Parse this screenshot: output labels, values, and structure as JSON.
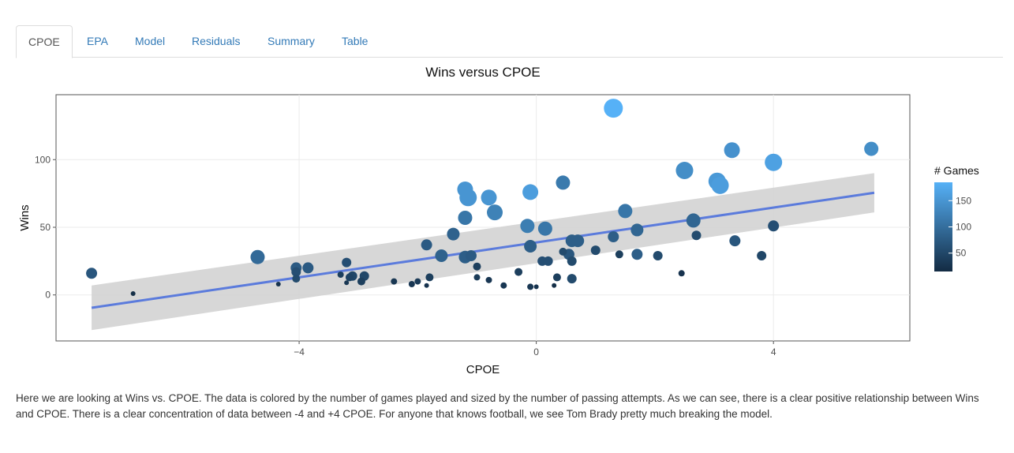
{
  "tabs": [
    {
      "label": "CPOE",
      "active": true
    },
    {
      "label": "EPA",
      "active": false
    },
    {
      "label": "Model",
      "active": false
    },
    {
      "label": "Residuals",
      "active": false
    },
    {
      "label": "Summary",
      "active": false
    },
    {
      "label": "Table",
      "active": false
    }
  ],
  "description": "Here we are looking at Wins vs. CPOE. The data is colored by the number of games played and sized by the number of passing attempts. As we can see, there is a clear positive relationship between Wins and CPOE. There is a clear concentration of data between -4 and +4 CPOE. For anyone that knows football, we see Tom Brady pretty much breaking the model.",
  "chart_data": {
    "type": "scatter",
    "title": "Wins versus CPOE",
    "xlabel": "CPOE",
    "ylabel": "Wins",
    "xlim": [
      -8.1,
      6.3
    ],
    "ylim": [
      -34,
      148
    ],
    "x_ticks": [
      -4,
      0,
      4
    ],
    "y_ticks": [
      0,
      50,
      100
    ],
    "grid": true,
    "colorbar": {
      "title": "# Games",
      "ticks": [
        50,
        100,
        150
      ],
      "range": [
        15,
        185
      ],
      "colors": [
        "#132b43",
        "#56b1f7"
      ]
    },
    "trend": {
      "x": [
        -7.5,
        5.7
      ],
      "y": [
        -9.5,
        75.5
      ],
      "band_lower": [
        -26,
        61
      ],
      "band_upper": [
        7,
        90
      ],
      "color": "#5b7bdc",
      "band_color": "#d3d3d3"
    },
    "points": [
      {
        "x": -7.5,
        "y": 16,
        "games": 70,
        "size": 7
      },
      {
        "x": -6.8,
        "y": 1,
        "games": 20,
        "size": 3
      },
      {
        "x": -4.7,
        "y": 28,
        "games": 95,
        "size": 9
      },
      {
        "x": -4.35,
        "y": 8,
        "games": 25,
        "size": 3
      },
      {
        "x": -4.05,
        "y": 20,
        "games": 75,
        "size": 7
      },
      {
        "x": -4.05,
        "y": 17,
        "games": 60,
        "size": 6
      },
      {
        "x": -4.05,
        "y": 12,
        "games": 55,
        "size": 5
      },
      {
        "x": -3.85,
        "y": 20,
        "games": 75,
        "size": 7
      },
      {
        "x": -3.3,
        "y": 15,
        "games": 40,
        "size": 4
      },
      {
        "x": -3.2,
        "y": 24,
        "games": 60,
        "size": 6
      },
      {
        "x": -3.2,
        "y": 9,
        "games": 30,
        "size": 3
      },
      {
        "x": -3.15,
        "y": 13,
        "games": 45,
        "size": 5
      },
      {
        "x": -3.1,
        "y": 14,
        "games": 50,
        "size": 6
      },
      {
        "x": -2.95,
        "y": 10,
        "games": 40,
        "size": 5
      },
      {
        "x": -2.9,
        "y": 14,
        "games": 50,
        "size": 6
      },
      {
        "x": -2.4,
        "y": 10,
        "games": 30,
        "size": 4
      },
      {
        "x": -2.1,
        "y": 8,
        "games": 30,
        "size": 4
      },
      {
        "x": -2.0,
        "y": 10,
        "games": 35,
        "size": 4
      },
      {
        "x": -1.85,
        "y": 7,
        "games": 25,
        "size": 3
      },
      {
        "x": -1.8,
        "y": 13,
        "games": 40,
        "size": 5
      },
      {
        "x": -1.85,
        "y": 37,
        "games": 75,
        "size": 7
      },
      {
        "x": -1.6,
        "y": 29,
        "games": 85,
        "size": 8
      },
      {
        "x": -1.4,
        "y": 45,
        "games": 85,
        "size": 8
      },
      {
        "x": -1.2,
        "y": 28,
        "games": 80,
        "size": 8
      },
      {
        "x": -1.2,
        "y": 78,
        "games": 150,
        "size": 10
      },
      {
        "x": -1.2,
        "y": 57,
        "games": 110,
        "size": 9
      },
      {
        "x": -1.15,
        "y": 72,
        "games": 150,
        "size": 11
      },
      {
        "x": -1.1,
        "y": 29,
        "games": 75,
        "size": 7
      },
      {
        "x": -1.0,
        "y": 21,
        "games": 40,
        "size": 5
      },
      {
        "x": -1.0,
        "y": 13,
        "games": 35,
        "size": 4
      },
      {
        "x": -0.8,
        "y": 72,
        "games": 150,
        "size": 10
      },
      {
        "x": -0.8,
        "y": 11,
        "games": 30,
        "size": 4
      },
      {
        "x": -0.7,
        "y": 61,
        "games": 125,
        "size": 10
      },
      {
        "x": -0.55,
        "y": 7,
        "games": 30,
        "size": 4
      },
      {
        "x": -0.3,
        "y": 17,
        "games": 40,
        "size": 5
      },
      {
        "x": -0.15,
        "y": 51,
        "games": 120,
        "size": 9
      },
      {
        "x": -0.1,
        "y": 76,
        "games": 160,
        "size": 10
      },
      {
        "x": -0.1,
        "y": 36,
        "games": 80,
        "size": 8
      },
      {
        "x": -0.1,
        "y": 6,
        "games": 30,
        "size": 4
      },
      {
        "x": 0.0,
        "y": 6,
        "games": 25,
        "size": 3
      },
      {
        "x": 0.1,
        "y": 25,
        "games": 60,
        "size": 6
      },
      {
        "x": 0.15,
        "y": 49,
        "games": 110,
        "size": 9
      },
      {
        "x": 0.2,
        "y": 25,
        "games": 60,
        "size": 6
      },
      {
        "x": 0.3,
        "y": 7,
        "games": 20,
        "size": 3
      },
      {
        "x": 0.35,
        "y": 13,
        "games": 40,
        "size": 5
      },
      {
        "x": 0.45,
        "y": 32,
        "games": 55,
        "size": 5
      },
      {
        "x": 0.45,
        "y": 83,
        "games": 115,
        "size": 9
      },
      {
        "x": 0.55,
        "y": 30,
        "games": 70,
        "size": 7
      },
      {
        "x": 0.6,
        "y": 25,
        "games": 55,
        "size": 6
      },
      {
        "x": 0.6,
        "y": 12,
        "games": 55,
        "size": 6
      },
      {
        "x": 0.6,
        "y": 40,
        "games": 80,
        "size": 8
      },
      {
        "x": 0.7,
        "y": 40,
        "games": 80,
        "size": 8
      },
      {
        "x": 1.0,
        "y": 33,
        "games": 55,
        "size": 6
      },
      {
        "x": 1.3,
        "y": 138,
        "games": 185,
        "size": 12
      },
      {
        "x": 1.3,
        "y": 43,
        "games": 80,
        "size": 7
      },
      {
        "x": 1.4,
        "y": 30,
        "games": 40,
        "size": 5
      },
      {
        "x": 1.5,
        "y": 62,
        "games": 110,
        "size": 9
      },
      {
        "x": 1.7,
        "y": 30,
        "games": 80,
        "size": 7
      },
      {
        "x": 1.7,
        "y": 48,
        "games": 90,
        "size": 8
      },
      {
        "x": 2.05,
        "y": 29,
        "games": 55,
        "size": 6
      },
      {
        "x": 2.45,
        "y": 16,
        "games": 25,
        "size": 4
      },
      {
        "x": 2.5,
        "y": 92,
        "games": 140,
        "size": 11
      },
      {
        "x": 2.65,
        "y": 55,
        "games": 90,
        "size": 9
      },
      {
        "x": 2.7,
        "y": 44,
        "games": 55,
        "size": 6
      },
      {
        "x": 3.05,
        "y": 84,
        "games": 155,
        "size": 11
      },
      {
        "x": 3.1,
        "y": 81,
        "games": 160,
        "size": 11
      },
      {
        "x": 3.3,
        "y": 107,
        "games": 145,
        "size": 10
      },
      {
        "x": 3.35,
        "y": 40,
        "games": 70,
        "size": 7
      },
      {
        "x": 3.8,
        "y": 29,
        "games": 50,
        "size": 6
      },
      {
        "x": 4.0,
        "y": 98,
        "games": 165,
        "size": 11
      },
      {
        "x": 4.0,
        "y": 51,
        "games": 60,
        "size": 7
      },
      {
        "x": 5.65,
        "y": 108,
        "games": 140,
        "size": 9
      }
    ]
  }
}
